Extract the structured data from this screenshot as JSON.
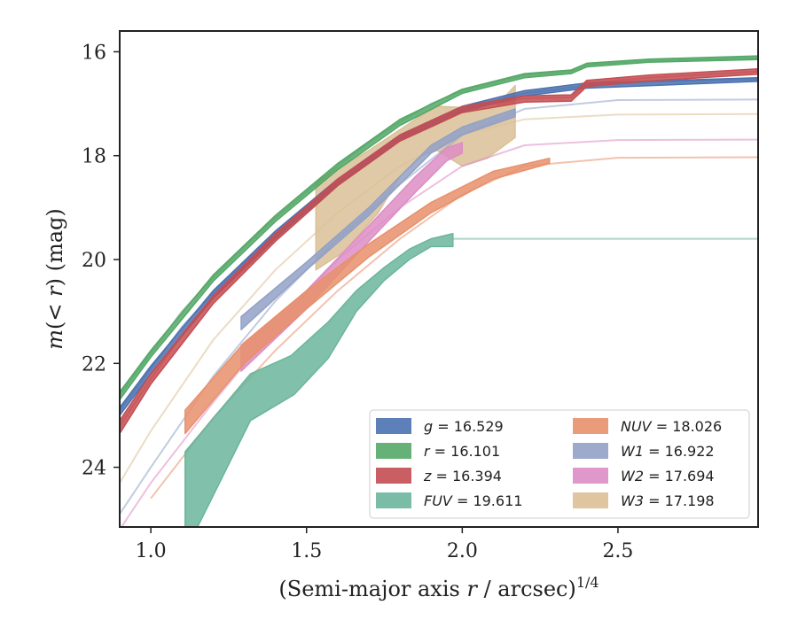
{
  "chart_data": {
    "type": "area",
    "xlabel": "(Semi-major axis r / arcsec)",
    "xlabel_prefix": "(Semi-major axis ",
    "xlabel_var": "r",
    "xlabel_suffix": " / arcsec)",
    "xlabel_exp": "1/4",
    "ylabel": "m(< r) (mag)",
    "ylabel_m": "m",
    "ylabel_mid": "(< ",
    "ylabel_r": "r",
    "ylabel_end": ") (mag)",
    "xlim": [
      0.9,
      2.95
    ],
    "ylim": [
      25.15,
      15.6
    ],
    "y_inverted": true,
    "xticks": [
      1.0,
      1.5,
      2.0,
      2.5
    ],
    "xtick_labels": [
      "1.0",
      "1.5",
      "2.0",
      "2.5"
    ],
    "yticks": [
      16,
      18,
      20,
      22,
      24
    ],
    "ytick_labels": [
      "16",
      "18",
      "20",
      "22",
      "24"
    ],
    "grid": false,
    "legend_position": "lower-right",
    "legend": [
      {
        "band": "g",
        "value": "16.529",
        "color": "#4c72b0"
      },
      {
        "band": "r",
        "value": "16.101",
        "color": "#55a868"
      },
      {
        "band": "z",
        "value": "16.394",
        "color": "#c44e52"
      },
      {
        "band": "FUV",
        "value": "19.611",
        "color": "#6bb59b"
      },
      {
        "band": "NUV",
        "value": "18.026",
        "color": "#e8906b"
      },
      {
        "band": "W1",
        "value": "16.922",
        "color": "#92a1c6"
      },
      {
        "band": "W2",
        "value": "17.694",
        "color": "#dd8dc4"
      },
      {
        "band": "W3",
        "value": "17.198",
        "color": "#dbc096"
      }
    ],
    "series": [
      {
        "key": "W3",
        "color": "#dbc096",
        "asymptote": 17.198,
        "model": [
          [
            0.9,
            24.3
          ],
          [
            1.0,
            23.3
          ],
          [
            1.2,
            21.55
          ],
          [
            1.4,
            20.2
          ],
          [
            1.6,
            19.1
          ],
          [
            1.8,
            18.2
          ],
          [
            2.0,
            17.6
          ],
          [
            2.2,
            17.3
          ],
          [
            2.5,
            17.21
          ],
          [
            2.95,
            17.2
          ]
        ],
        "band_upper": [
          [
            1.53,
            18.5
          ],
          [
            1.7,
            17.9
          ],
          [
            1.85,
            17.3
          ],
          [
            1.92,
            17.05
          ],
          [
            2.1,
            17.1
          ],
          [
            2.17,
            16.65
          ]
        ],
        "band_lower": [
          [
            1.53,
            20.2
          ],
          [
            1.62,
            19.85
          ],
          [
            1.73,
            19.1
          ],
          [
            1.8,
            18.4
          ],
          [
            1.87,
            18.0
          ],
          [
            1.92,
            17.9
          ],
          [
            2.0,
            18.2
          ],
          [
            2.08,
            18.05
          ],
          [
            2.17,
            17.65
          ]
        ]
      },
      {
        "key": "W1",
        "color": "#92a1c6",
        "asymptote": 16.922,
        "model": [
          [
            0.9,
            24.9
          ],
          [
            1.0,
            24.0
          ],
          [
            1.2,
            22.25
          ],
          [
            1.4,
            20.8
          ],
          [
            1.6,
            19.6
          ],
          [
            1.8,
            18.55
          ],
          [
            2.0,
            17.6
          ],
          [
            2.2,
            17.1
          ],
          [
            2.5,
            16.93
          ],
          [
            2.95,
            16.92
          ]
        ],
        "band_upper": [
          [
            1.29,
            21.1
          ],
          [
            1.5,
            20.05
          ],
          [
            1.7,
            19.0
          ],
          [
            1.9,
            17.8
          ],
          [
            2.0,
            17.45
          ],
          [
            2.17,
            17.1
          ]
        ],
        "band_lower": [
          [
            1.29,
            21.35
          ],
          [
            1.5,
            20.2
          ],
          [
            1.7,
            19.15
          ],
          [
            1.9,
            17.95
          ],
          [
            2.0,
            17.6
          ],
          [
            2.17,
            17.25
          ]
        ]
      },
      {
        "key": "W2",
        "color": "#dd8dc4",
        "asymptote": 17.694,
        "model": [
          [
            0.9,
            25.2
          ],
          [
            1.0,
            24.3
          ],
          [
            1.2,
            22.75
          ],
          [
            1.4,
            21.3
          ],
          [
            1.6,
            20.0
          ],
          [
            1.8,
            19.0
          ],
          [
            2.0,
            18.2
          ],
          [
            2.2,
            17.8
          ],
          [
            2.5,
            17.7
          ],
          [
            2.95,
            17.69
          ]
        ],
        "band_upper": [
          [
            1.29,
            21.65
          ],
          [
            1.5,
            20.6
          ],
          [
            1.7,
            19.35
          ],
          [
            1.85,
            18.4
          ],
          [
            1.95,
            17.85
          ],
          [
            2.0,
            17.75
          ]
        ],
        "band_lower": [
          [
            1.29,
            22.15
          ],
          [
            1.5,
            20.95
          ],
          [
            1.7,
            19.65
          ],
          [
            1.85,
            18.7
          ],
          [
            1.95,
            18.1
          ],
          [
            2.0,
            17.95
          ]
        ]
      },
      {
        "key": "NUV",
        "color": "#e8906b",
        "asymptote": 18.026,
        "model": [
          [
            1.0,
            24.6
          ],
          [
            1.2,
            23.05
          ],
          [
            1.4,
            21.75
          ],
          [
            1.6,
            20.6
          ],
          [
            1.8,
            19.6
          ],
          [
            2.0,
            18.75
          ],
          [
            2.2,
            18.2
          ],
          [
            2.5,
            18.04
          ],
          [
            2.95,
            18.03
          ]
        ],
        "band_upper": [
          [
            1.11,
            22.9
          ],
          [
            1.3,
            21.6
          ],
          [
            1.5,
            20.6
          ],
          [
            1.7,
            19.7
          ],
          [
            1.9,
            18.9
          ],
          [
            2.1,
            18.3
          ],
          [
            2.28,
            18.05
          ]
        ],
        "band_lower": [
          [
            1.11,
            23.35
          ],
          [
            1.3,
            22.0
          ],
          [
            1.5,
            20.95
          ],
          [
            1.7,
            19.95
          ],
          [
            1.9,
            19.1
          ],
          [
            2.1,
            18.45
          ],
          [
            2.28,
            18.15
          ]
        ]
      },
      {
        "key": "FUV",
        "color": "#6bb59b",
        "asymptote": 19.611,
        "model": [
          [
            1.97,
            19.6
          ],
          [
            2.95,
            19.6
          ]
        ],
        "band_upper": [
          [
            1.11,
            23.7
          ],
          [
            1.32,
            22.2
          ],
          [
            1.45,
            21.85
          ],
          [
            1.57,
            21.2
          ],
          [
            1.66,
            20.6
          ],
          [
            1.75,
            20.15
          ],
          [
            1.83,
            19.8
          ],
          [
            1.9,
            19.6
          ],
          [
            1.97,
            19.5
          ]
        ],
        "band_lower": [
          [
            1.11,
            25.15
          ],
          [
            1.15,
            25.15
          ],
          [
            1.32,
            23.1
          ],
          [
            1.46,
            22.6
          ],
          [
            1.57,
            21.9
          ],
          [
            1.66,
            21.0
          ],
          [
            1.75,
            20.4
          ],
          [
            1.83,
            20.0
          ],
          [
            1.9,
            19.75
          ],
          [
            1.97,
            19.75
          ]
        ]
      },
      {
        "key": "g",
        "color": "#4c72b0",
        "asymptote": 16.529,
        "model": [
          [
            0.9,
            22.9
          ],
          [
            1.0,
            22.1
          ],
          [
            1.1,
            21.3
          ],
          [
            1.2,
            20.65
          ],
          [
            1.3,
            20.05
          ],
          [
            1.4,
            19.5
          ],
          [
            1.5,
            19.0
          ],
          [
            1.6,
            18.5
          ],
          [
            1.7,
            18.05
          ],
          [
            1.8,
            17.65
          ],
          [
            1.9,
            17.35
          ],
          [
            2.0,
            17.1
          ],
          [
            2.2,
            16.8
          ],
          [
            2.4,
            16.65
          ],
          [
            2.6,
            16.58
          ],
          [
            2.95,
            16.53
          ]
        ],
        "band_upper": [
          [
            0.9,
            22.85
          ],
          [
            1.0,
            22.05
          ],
          [
            1.2,
            20.6
          ],
          [
            1.4,
            19.45
          ],
          [
            1.6,
            18.45
          ],
          [
            1.8,
            17.6
          ],
          [
            2.0,
            17.05
          ],
          [
            2.2,
            16.75
          ],
          [
            2.4,
            16.6
          ],
          [
            2.95,
            16.5
          ]
        ],
        "band_lower": [
          [
            0.9,
            23.0
          ],
          [
            1.0,
            22.2
          ],
          [
            1.2,
            20.75
          ],
          [
            1.4,
            19.6
          ],
          [
            1.6,
            18.55
          ],
          [
            1.8,
            17.7
          ],
          [
            2.0,
            17.15
          ],
          [
            2.2,
            16.85
          ],
          [
            2.4,
            16.7
          ],
          [
            2.95,
            16.57
          ]
        ]
      },
      {
        "key": "z",
        "color": "#c44e52",
        "asymptote": 16.394,
        "model": [
          [
            0.9,
            23.2
          ],
          [
            1.0,
            22.3
          ],
          [
            1.1,
            21.45
          ],
          [
            1.2,
            20.75
          ],
          [
            1.3,
            20.15
          ],
          [
            1.4,
            19.55
          ],
          [
            1.5,
            19.0
          ],
          [
            1.6,
            18.5
          ],
          [
            1.7,
            18.05
          ],
          [
            1.8,
            17.65
          ],
          [
            1.9,
            17.35
          ],
          [
            2.0,
            17.1
          ],
          [
            2.2,
            16.9
          ],
          [
            2.35,
            16.88
          ],
          [
            2.4,
            16.6
          ],
          [
            2.6,
            16.5
          ],
          [
            2.95,
            16.38
          ]
        ],
        "band_upper": [
          [
            0.9,
            23.1
          ],
          [
            1.0,
            22.2
          ],
          [
            1.2,
            20.7
          ],
          [
            1.4,
            19.5
          ],
          [
            1.6,
            18.45
          ],
          [
            1.8,
            17.6
          ],
          [
            2.0,
            17.05
          ],
          [
            2.2,
            16.85
          ],
          [
            2.35,
            16.83
          ],
          [
            2.4,
            16.55
          ],
          [
            2.6,
            16.45
          ],
          [
            2.95,
            16.33
          ]
        ],
        "band_lower": [
          [
            0.9,
            23.35
          ],
          [
            1.0,
            22.4
          ],
          [
            1.2,
            20.85
          ],
          [
            1.4,
            19.65
          ],
          [
            1.6,
            18.58
          ],
          [
            1.8,
            17.72
          ],
          [
            2.0,
            17.17
          ],
          [
            2.2,
            16.97
          ],
          [
            2.35,
            16.95
          ],
          [
            2.4,
            16.67
          ],
          [
            2.6,
            16.56
          ],
          [
            2.95,
            16.43
          ]
        ]
      },
      {
        "key": "r",
        "color": "#55a868",
        "asymptote": 16.101,
        "model": [
          [
            0.9,
            22.6
          ],
          [
            1.0,
            21.8
          ],
          [
            1.1,
            21.0
          ],
          [
            1.2,
            20.35
          ],
          [
            1.3,
            19.75
          ],
          [
            1.4,
            19.2
          ],
          [
            1.5,
            18.7
          ],
          [
            1.6,
            18.2
          ],
          [
            1.7,
            17.75
          ],
          [
            1.8,
            17.35
          ],
          [
            1.9,
            17.0
          ],
          [
            2.0,
            16.75
          ],
          [
            2.2,
            16.45
          ],
          [
            2.35,
            16.38
          ],
          [
            2.4,
            16.25
          ],
          [
            2.6,
            16.17
          ],
          [
            2.95,
            16.12
          ]
        ],
        "band_upper": [
          [
            0.9,
            22.55
          ],
          [
            1.0,
            21.75
          ],
          [
            1.2,
            20.3
          ],
          [
            1.4,
            19.15
          ],
          [
            1.6,
            18.15
          ],
          [
            1.8,
            17.3
          ],
          [
            2.0,
            16.72
          ],
          [
            2.2,
            16.42
          ],
          [
            2.35,
            16.35
          ],
          [
            2.4,
            16.22
          ],
          [
            2.6,
            16.14
          ],
          [
            2.95,
            16.08
          ]
        ],
        "band_lower": [
          [
            0.9,
            22.7
          ],
          [
            1.0,
            21.88
          ],
          [
            1.2,
            20.42
          ],
          [
            1.4,
            19.27
          ],
          [
            1.6,
            18.27
          ],
          [
            1.8,
            17.42
          ],
          [
            2.0,
            16.8
          ],
          [
            2.2,
            16.5
          ],
          [
            2.35,
            16.42
          ],
          [
            2.4,
            16.29
          ],
          [
            2.6,
            16.2
          ],
          [
            2.95,
            16.15
          ]
        ]
      }
    ]
  }
}
